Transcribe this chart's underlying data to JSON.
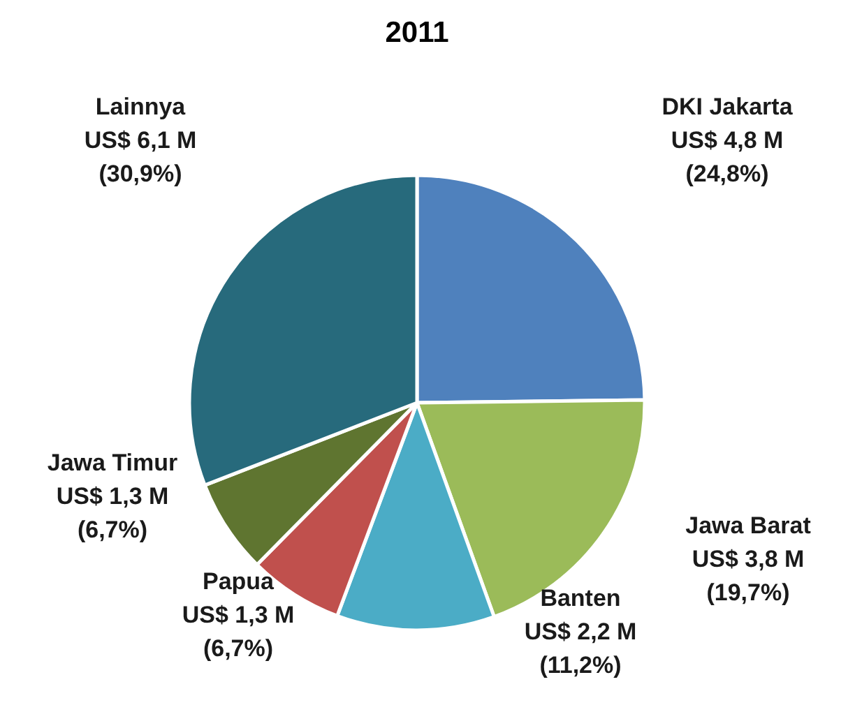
{
  "chart_data": {
    "type": "pie",
    "title": "2011",
    "categories": [
      "DKI Jakarta",
      "Jawa Barat",
      "Banten",
      "Papua",
      "Jawa Timur",
      "Lainnya"
    ],
    "values": [
      24.8,
      19.7,
      11.2,
      6.7,
      6.7,
      30.9
    ],
    "colors": [
      "#4f81bd",
      "#9bbb59",
      "#4bacc6",
      "#c0504d",
      "#5f7530",
      "#276a7c"
    ],
    "value_labels": [
      "US$ 4,8 M\n(24,8%)",
      "US$ 3,8 M\n(19,7%)",
      "US$ 2,2 M\n(11,2%)",
      "US$ 1,3 M\n(6,7%)",
      "US$ 1,3 M\n(6,7%)",
      "US$ 6,1 M\n(30,9%)"
    ]
  }
}
